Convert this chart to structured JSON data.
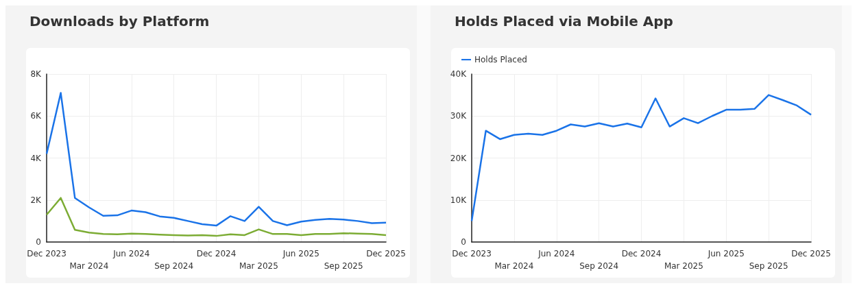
{
  "chart_data": [
    {
      "type": "line",
      "title": "Downloads by Platform",
      "categories": [
        "Dec 2023",
        null,
        null,
        "Mar 2024",
        null,
        null,
        "Jun 2024",
        null,
        null,
        "Sep 2024",
        null,
        null,
        "Dec 2024",
        null,
        null,
        "Mar 2025",
        null,
        null,
        "Jun 2025",
        null,
        null,
        "Sep 2025",
        null,
        null,
        "Dec 2025"
      ],
      "series": [
        {
          "color": "#1a73e8",
          "values": [
            4200,
            7100,
            2100,
            1650,
            1250,
            1270,
            1500,
            1420,
            1220,
            1150,
            1000,
            850,
            780,
            1230,
            1000,
            1680,
            1000,
            800,
            970,
            1050,
            1100,
            1070,
            1000,
            900,
            920
          ]
        },
        {
          "color": "#7cac34",
          "values": [
            1300,
            2100,
            580,
            450,
            380,
            370,
            400,
            380,
            350,
            330,
            310,
            330,
            290,
            370,
            330,
            600,
            380,
            380,
            330,
            380,
            380,
            420,
            400,
            380,
            330
          ]
        }
      ],
      "ylim": [
        0,
        8000
      ],
      "yticks": [
        0,
        {
          "value": 2000,
          "label": "2K"
        },
        {
          "value": 4000,
          "label": "4K"
        },
        {
          "value": 6000,
          "label": "6K"
        },
        {
          "value": 8000,
          "label": "8K"
        }
      ],
      "grid": true,
      "legend": false,
      "marker": "none"
    },
    {
      "type": "line",
      "title": "Holds Placed via Mobile App",
      "categories": [
        "Dec 2023",
        null,
        null,
        "Mar 2024",
        null,
        null,
        "Jun 2024",
        null,
        null,
        "Sep 2024",
        null,
        null,
        "Dec 2024",
        null,
        null,
        "Mar 2025",
        null,
        null,
        "Jun 2025",
        null,
        null,
        "Sep 2025",
        null,
        null,
        "Dec 2025"
      ],
      "series": [
        {
          "name": "Holds Placed",
          "color": "#1a73e8",
          "values": [
            5000,
            26500,
            24500,
            25500,
            25800,
            25500,
            26500,
            28000,
            27500,
            28300,
            27500,
            28200,
            27300,
            34200,
            27500,
            29500,
            28300,
            30000,
            31500,
            31500,
            31700,
            35000,
            33800,
            32500,
            30300
          ]
        }
      ],
      "ylim": [
        0,
        40000
      ],
      "yticks": [
        0,
        {
          "value": 10000,
          "label": "10K"
        },
        {
          "value": 20000,
          "label": "20K"
        },
        {
          "value": 30000,
          "label": "30K"
        },
        {
          "value": 40000,
          "label": "40K"
        }
      ],
      "grid": true,
      "legend": "top left",
      "marker": "none"
    }
  ]
}
